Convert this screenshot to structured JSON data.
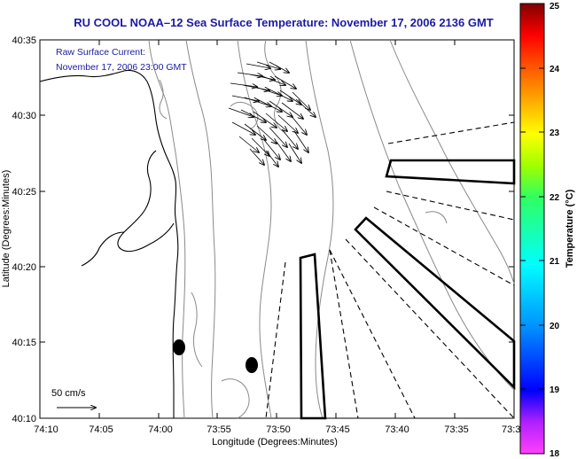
{
  "title": "RU COOL  NOAA–12  Sea Surface Temperature:  November 17, 2006 2136 GMT",
  "annotation": {
    "line1": "Raw Surface Current:",
    "line2": "November 17, 2006 23:00 GMT"
  },
  "scale_label": "50 cm/s",
  "x_axis": {
    "label": "Longitude (Degrees:Minutes)",
    "ticks": [
      "74:10",
      "74:05",
      "74:00",
      "73:55",
      "73:50",
      "73:45",
      "73:40",
      "73:35",
      "73:3"
    ]
  },
  "y_axis": {
    "label": "Latitude (Degrees:Minutes)",
    "ticks": [
      "40:10",
      "40:15",
      "40:20",
      "40:25",
      "40:30",
      "40:35"
    ]
  },
  "colorbar": {
    "label": "Temperature (°C)",
    "ticks": [
      "18",
      "19",
      "20",
      "21",
      "22",
      "23",
      "24",
      "25"
    ],
    "min": 18,
    "max": 25,
    "colors": [
      "#ff40ff",
      "#8000ff",
      "#0000ff",
      "#0080ff",
      "#00ffff",
      "#00ff80",
      "#80ff00",
      "#ffff00",
      "#ff8000",
      "#ff0000",
      "#800000"
    ]
  }
}
